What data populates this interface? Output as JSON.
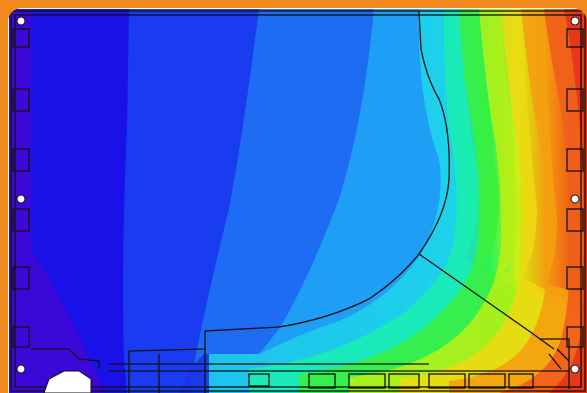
{
  "figure": {
    "kind": "thermal-simulation-isotherm-map",
    "subject": "window-frame-profile-cross-section",
    "colormap": [
      "#2a00c8",
      "#1a0ae6",
      "#1530ee",
      "#1e5cf2",
      "#1f8ef4",
      "#1eb8f2",
      "#1ed8e2",
      "#1aeda8",
      "#22f25a",
      "#84f21a",
      "#d2f014",
      "#f0d010",
      "#f59a10",
      "#f2641a",
      "#e8381a"
    ],
    "frame_color": "#f08a1e",
    "card_background": "#ffffff"
  }
}
